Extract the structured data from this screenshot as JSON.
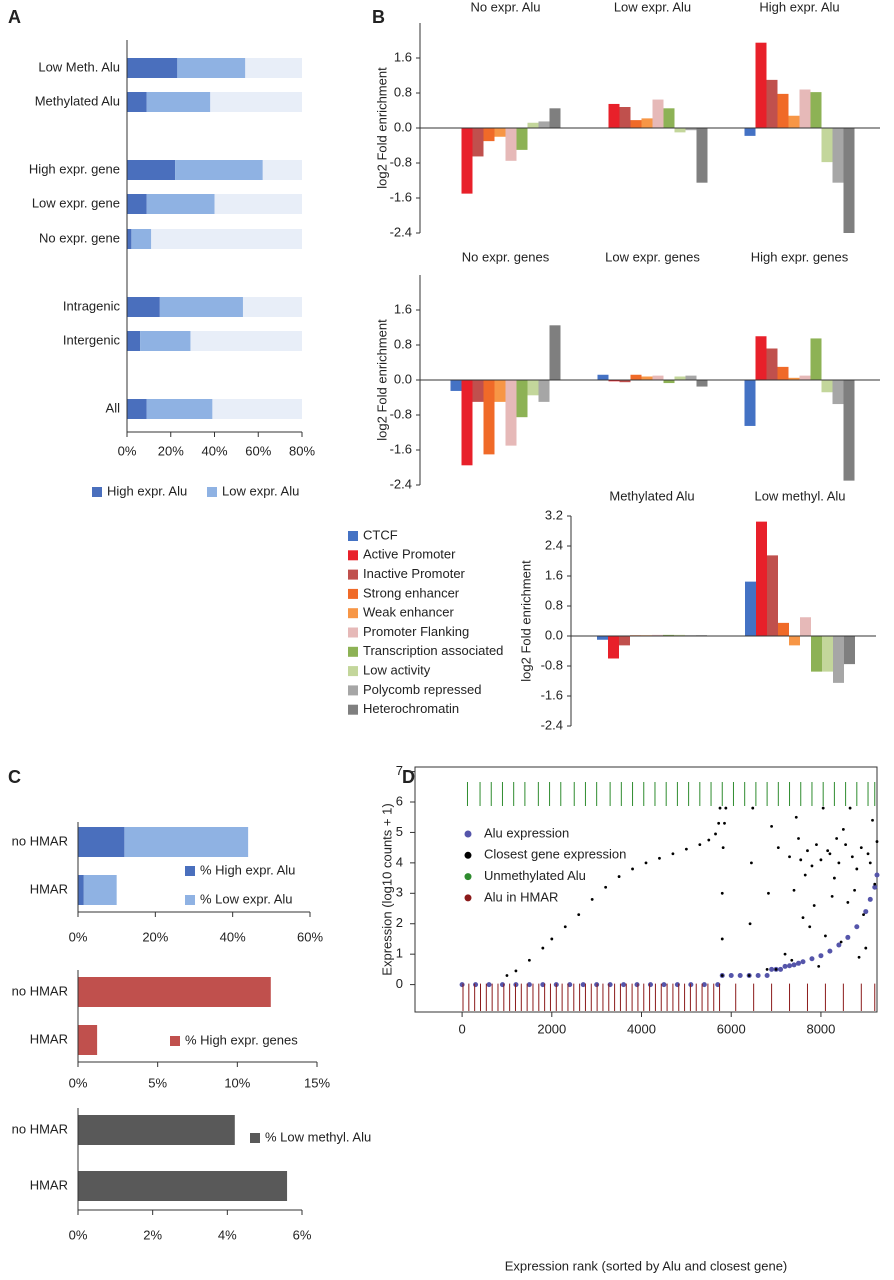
{
  "chart_data": [
    {
      "type": "bar",
      "orientation": "horizontal",
      "stacked": true,
      "panel": "A",
      "categories": [
        "Low Meth. Alu",
        "Methylated Alu",
        "High expr. gene",
        "Low expr. gene",
        "No expr. gene",
        "Intragenic",
        "Intergenic",
        "All"
      ],
      "series": [
        {
          "name": "High expr. Alu",
          "color": "#4a6fbd",
          "values": [
            23,
            9,
            22,
            9,
            2,
            15,
            6,
            9
          ]
        },
        {
          "name": "Low expr. Alu",
          "color": "#8fb2e3",
          "values": [
            31,
            29,
            40,
            31,
            9,
            38,
            23,
            30
          ]
        }
      ],
      "track_color": "#e8eef8",
      "xlim": [
        0,
        80
      ],
      "xticks": [
        {
          "value": 0,
          "label": "0%"
        },
        {
          "value": 20,
          "label": "20%"
        },
        {
          "value": 40,
          "label": "40%"
        },
        {
          "value": 60,
          "label": "60%"
        },
        {
          "value": 80,
          "label": "80%"
        }
      ]
    },
    {
      "type": "bar",
      "orientation": "vertical",
      "panel": "B",
      "categories": [
        "No expr. Alu",
        "Low expr. Alu",
        "High expr. Alu"
      ],
      "series": [
        {
          "values": [
            0.0,
            0.0,
            -0.18
          ]
        },
        {
          "values": [
            -1.5,
            0.55,
            1.95
          ]
        },
        {
          "values": [
            -0.65,
            0.48,
            1.1
          ]
        },
        {
          "values": [
            -0.3,
            0.18,
            0.78
          ]
        },
        {
          "values": [
            -0.2,
            0.22,
            0.28
          ]
        },
        {
          "values": [
            -0.75,
            0.65,
            0.88
          ]
        },
        {
          "values": [
            -0.5,
            0.45,
            0.82
          ]
        },
        {
          "values": [
            0.12,
            -0.1,
            -0.78
          ]
        },
        {
          "values": [
            0.15,
            -0.05,
            -1.25
          ]
        },
        {
          "values": [
            0.45,
            -1.25,
            -2.4
          ]
        }
      ],
      "ylim": [
        -2.4,
        2.4
      ],
      "yticks": [
        1.6,
        0.8,
        {
          "value": 0,
          "label": "0.0"
        },
        -0.8,
        -1.6,
        -2.4
      ],
      "ylabel": "log2 Fold enrichment"
    },
    {
      "type": "bar",
      "orientation": "vertical",
      "categories": [
        "No expr. genes",
        "Low expr. genes",
        "High expr. genes"
      ],
      "series": [
        {
          "values": [
            -0.25,
            0.12,
            -1.05
          ]
        },
        {
          "values": [
            -1.95,
            -0.03,
            1.0
          ]
        },
        {
          "values": [
            -0.5,
            -0.05,
            0.72
          ]
        },
        {
          "values": [
            -1.7,
            0.12,
            0.3
          ]
        },
        {
          "values": [
            -0.5,
            0.08,
            0.05
          ]
        },
        {
          "values": [
            -1.5,
            0.1,
            0.1
          ]
        },
        {
          "values": [
            -0.85,
            -0.07,
            0.95
          ]
        },
        {
          "values": [
            -0.35,
            0.08,
            -0.28
          ]
        },
        {
          "values": [
            -0.5,
            0.1,
            -0.55
          ]
        },
        {
          "values": [
            1.25,
            -0.15,
            -2.3
          ]
        }
      ],
      "ylim": [
        -2.4,
        2.4
      ],
      "yticks": [
        1.6,
        0.8,
        {
          "value": 0,
          "label": "0.0"
        },
        -0.8,
        -1.6,
        -2.4
      ],
      "ylabel": "log2 Fold enrichment"
    },
    {
      "type": "bar",
      "orientation": "vertical",
      "categories": [
        "Methylated Alu",
        "Low methyl. Alu"
      ],
      "series": [
        {
          "name": "CTCF",
          "color": "#4472c4",
          "values": [
            -0.1,
            1.45
          ]
        },
        {
          "name": "Active Promoter",
          "color": "#e8202a",
          "values": [
            -0.6,
            3.05
          ]
        },
        {
          "name": "Inactive Promoter",
          "color": "#c0504d",
          "values": [
            -0.25,
            2.15
          ]
        },
        {
          "name": "Strong enhancer",
          "color": "#f06a28",
          "values": [
            0.02,
            0.35
          ]
        },
        {
          "name": "Weak enhancer",
          "color": "#f79646",
          "values": [
            0.02,
            -0.25
          ]
        },
        {
          "name": "Promoter Flanking",
          "color": "#e6b9b8",
          "values": [
            0.03,
            0.5
          ]
        },
        {
          "name": "Transcription associated",
          "color": "#8db255",
          "values": [
            0.03,
            -0.95
          ]
        },
        {
          "name": "Low activity",
          "color": "#c3d69b",
          "values": [
            0.03,
            -0.95
          ]
        },
        {
          "name": "Polycomb repressed",
          "color": "#a6a6a6",
          "values": [
            0.02,
            -1.25
          ]
        },
        {
          "name": "Heterochromatin",
          "color": "#7f7f7f",
          "values": [
            0.02,
            -0.75
          ]
        }
      ],
      "ylim": [
        -2.4,
        3.2
      ],
      "yticks": [
        3.2,
        2.4,
        1.6,
        0.8,
        {
          "value": 0,
          "label": "0.0"
        },
        -0.8,
        -1.6,
        -2.4
      ],
      "ylabel": "log2 Fold enrichment"
    },
    {
      "type": "bar",
      "orientation": "horizontal",
      "stacked": true,
      "panel": "C",
      "categories": [
        "no HMAR",
        "HMAR"
      ],
      "series": [
        {
          "name": "% High expr. Alu",
          "color": "#4a6fbd",
          "values": [
            12,
            1.5
          ]
        },
        {
          "name": "% Low expr. Alu",
          "color": "#8fb2e3",
          "values": [
            32,
            8.5
          ]
        }
      ],
      "xlim": [
        0,
        60
      ],
      "xticks": [
        {
          "value": 0,
          "label": "0%"
        },
        {
          "value": 20,
          "label": "20%"
        },
        {
          "value": 40,
          "label": "40%"
        },
        {
          "value": 60,
          "label": "60%"
        }
      ]
    },
    {
      "type": "bar",
      "orientation": "horizontal",
      "categories": [
        "no HMAR",
        "HMAR"
      ],
      "series": [
        {
          "name": "% High expr. genes",
          "color": "#c0504d",
          "values": [
            12.1,
            1.2
          ]
        }
      ],
      "xlim": [
        0,
        15
      ],
      "xticks": [
        {
          "value": 0,
          "label": "0%"
        },
        {
          "value": 5,
          "label": "5%"
        },
        {
          "value": 10,
          "label": "10%"
        },
        {
          "value": 15,
          "label": "15%"
        }
      ]
    },
    {
      "type": "bar",
      "orientation": "horizontal",
      "categories": [
        "no HMAR",
        "HMAR"
      ],
      "series": [
        {
          "name": "% Low methyl. Alu",
          "color": "#595959",
          "values": [
            4.2,
            5.6
          ]
        }
      ],
      "xlim": [
        0,
        6
      ],
      "xticks": [
        {
          "value": 0,
          "label": "0%"
        },
        {
          "value": 2,
          "label": "2%"
        },
        {
          "value": 4,
          "label": "4%"
        },
        {
          "value": 6,
          "label": "6%"
        }
      ]
    },
    {
      "type": "scatter",
      "panel": "D",
      "xlabel": "Expression rank (sorted by Alu and closest gene)",
      "ylabel": "Expression (log10 counts + 1)",
      "xlim": [
        -1050,
        9250
      ],
      "ylim": [
        -0.9,
        7.15
      ],
      "xticks": [
        0,
        2000,
        4000,
        6000,
        8000
      ],
      "yticks": [
        0,
        1,
        2,
        3,
        4,
        5,
        6,
        7
      ],
      "series": [
        {
          "name": "Alu expression",
          "color": "#5555aa",
          "x": [
            0,
            300,
            600,
            900,
            1200,
            1500,
            1800,
            2100,
            2400,
            2700,
            3000,
            3300,
            3600,
            3900,
            4200,
            4500,
            4800,
            5100,
            5400,
            5700,
            5800,
            6000,
            6200,
            6400,
            6600,
            6800,
            6900,
            7000,
            7100,
            7200,
            7300,
            7400,
            7500,
            7600,
            7800,
            8000,
            8200,
            8400,
            8600,
            8800,
            9000,
            9100,
            9200,
            9250
          ],
          "values": [
            0,
            0,
            0,
            0,
            0,
            0,
            0,
            0,
            0,
            0,
            0,
            0,
            0,
            0,
            0,
            0,
            0,
            0,
            0,
            0,
            0.3,
            0.3,
            0.3,
            0.3,
            0.3,
            0.3,
            0.5,
            0.5,
            0.5,
            0.6,
            0.62,
            0.65,
            0.7,
            0.75,
            0.85,
            0.95,
            1.1,
            1.3,
            1.55,
            1.9,
            2.4,
            2.8,
            3.2,
            3.6
          ]
        },
        {
          "name": "Closest gene expression",
          "color": "#000000",
          "x": [
            1000,
            1200,
            1500,
            1800,
            2000,
            2300,
            2600,
            2900,
            3200,
            3500,
            3800,
            4100,
            4400,
            4700,
            5000,
            5300,
            5500,
            5650,
            5720,
            5750,
            5800,
            5800,
            5800,
            5820,
            5850,
            5880,
            6400,
            6420,
            6450,
            6480,
            6800,
            6830,
            6900,
            7000,
            7050,
            7200,
            7300,
            7400,
            7500,
            7600,
            7700,
            7800,
            7900,
            8000,
            8100,
            8200,
            8300,
            8400,
            8500,
            8600,
            8700,
            8800,
            8900,
            9000,
            9100,
            9200,
            7350,
            7650,
            7950,
            8250,
            8550,
            8850,
            9150,
            7450,
            8050,
            8650,
            7750,
            8350,
            8950,
            7550,
            8150,
            8750,
            9050,
            7850,
            8450,
            9250
          ],
          "values": [
            0.3,
            0.45,
            0.8,
            1.2,
            1.5,
            1.9,
            2.3,
            2.8,
            3.2,
            3.55,
            3.8,
            4.0,
            4.15,
            4.3,
            4.45,
            4.6,
            4.75,
            4.95,
            5.3,
            5.8,
            0.3,
            1.5,
            3,
            4.5,
            5.3,
            5.8,
            0.3,
            2,
            4,
            5.8,
            0.5,
            3,
            5.2,
            0.5,
            4.5,
            1.0,
            4.2,
            3.1,
            4.8,
            2.2,
            4.4,
            3.9,
            4.6,
            4.1,
            1.6,
            4.3,
            3.5,
            4.0,
            5.1,
            2.7,
            4.2,
            3.8,
            4.5,
            1.2,
            4.0,
            3.3,
            0.8,
            3.6,
            0.6,
            2.9,
            4.6,
            0.9,
            5.4,
            5.5,
            5.8,
            5.8,
            1.9,
            4.8,
            2.3,
            4.1,
            4.4,
            3.1,
            4.3,
            2.6,
            1.4,
            4.7
          ]
        },
        {
          "name": "Unmethylated Alu",
          "color": "#2e8b2e",
          "rug": "top",
          "x": [
            120,
            400,
            650,
            900,
            1150,
            1400,
            1700,
            1950,
            2200,
            2500,
            2750,
            3000,
            3300,
            3550,
            3800,
            4050,
            4300,
            4550,
            4800,
            5050,
            5300,
            5550,
            5800,
            6050,
            6300,
            6550,
            6800,
            7050,
            7300,
            7550,
            7800,
            8050,
            8300,
            8550,
            8800,
            9050,
            9200
          ]
        },
        {
          "name": "Alu  in HMAR",
          "color": "#8b1a1a",
          "rug": "bottom",
          "x": [
            20,
            150,
            280,
            410,
            540,
            670,
            800,
            930,
            1060,
            1190,
            1320,
            1450,
            1580,
            1710,
            1840,
            1970,
            2100,
            2230,
            2360,
            2490,
            2620,
            2750,
            2880,
            3010,
            3140,
            3270,
            3400,
            3530,
            3660,
            3790,
            3920,
            4050,
            4180,
            4310,
            4440,
            4570,
            4700,
            4830,
            4960,
            5090,
            5220,
            5350,
            5480,
            5610,
            5740,
            6100,
            6500,
            6900,
            7300,
            7700,
            8100,
            8500,
            8900,
            9200
          ]
        }
      ]
    }
  ]
}
